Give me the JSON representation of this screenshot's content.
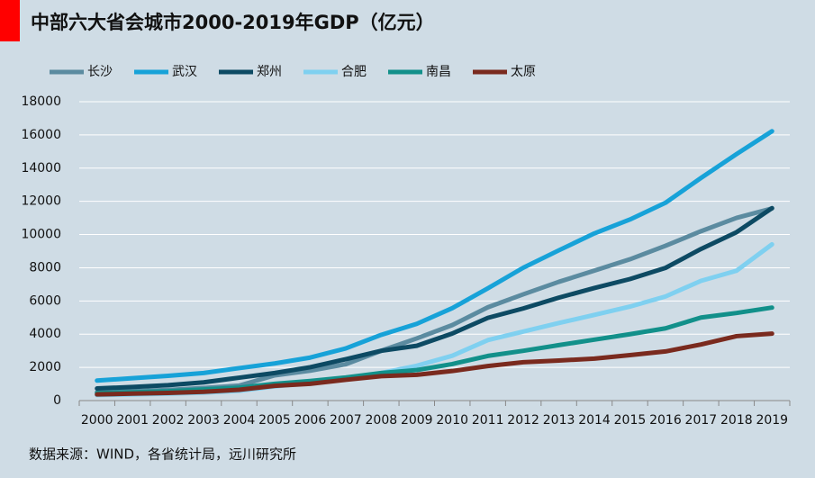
{
  "chart_data": {
    "type": "line",
    "title": "中部六大省会城市2000-2019年GDP（亿元）",
    "source": "数据来源：WIND，各省统计局，远川研究所",
    "categories": [
      "2000",
      "2001",
      "2002",
      "2003",
      "2004",
      "2005",
      "2006",
      "2007",
      "2008",
      "2009",
      "2010",
      "2011",
      "2012",
      "2013",
      "2014",
      "2015",
      "2016",
      "2017",
      "2018",
      "2019"
    ],
    "series": [
      {
        "name": "长沙",
        "color": "#5b8ba0",
        "values": [
          500,
          560,
          640,
          760,
          900,
          1520,
          1800,
          2190,
          3000,
          3745,
          4547,
          5619,
          6400,
          7153,
          7825,
          8510,
          9323,
          10200,
          11003,
          11574
        ]
      },
      {
        "name": "武汉",
        "color": "#17a2d8",
        "values": [
          1206,
          1348,
          1493,
          1662,
          1956,
          2238,
          2590,
          3142,
          3960,
          4621,
          5566,
          6762,
          8004,
          9051,
          10069,
          10906,
          11913,
          13410,
          14847,
          16223
        ]
      },
      {
        "name": "郑州",
        "color": "#0d4a63",
        "values": [
          730,
          820,
          930,
          1100,
          1380,
          1660,
          2010,
          2490,
          3000,
          3300,
          4040,
          4980,
          5550,
          6200,
          6780,
          7320,
          7990,
          9130,
          10140,
          11590
        ]
      },
      {
        "name": "合肥",
        "color": "#7fd0f0",
        "values": [
          330,
          370,
          420,
          480,
          590,
          850,
          1070,
          1330,
          1660,
          2100,
          2700,
          3640,
          4160,
          4670,
          5160,
          5660,
          6270,
          7210,
          7820,
          9410
        ]
      },
      {
        "name": "南昌",
        "color": "#12908a",
        "values": [
          450,
          500,
          560,
          670,
          780,
          1010,
          1180,
          1390,
          1660,
          1840,
          2200,
          2690,
          3000,
          3340,
          3670,
          4000,
          4350,
          5000,
          5275,
          5600
        ]
      },
      {
        "name": "太原",
        "color": "#7a2a1e",
        "values": [
          370,
          420,
          460,
          530,
          650,
          890,
          1010,
          1250,
          1470,
          1550,
          1780,
          2080,
          2310,
          2410,
          2530,
          2740,
          2960,
          3380,
          3880,
          4030
        ]
      }
    ],
    "ylim": [
      0,
      18000
    ],
    "yticks": [
      0,
      2000,
      4000,
      6000,
      8000,
      10000,
      12000,
      14000,
      16000,
      18000
    ],
    "grid": true,
    "legend": "top-left"
  }
}
